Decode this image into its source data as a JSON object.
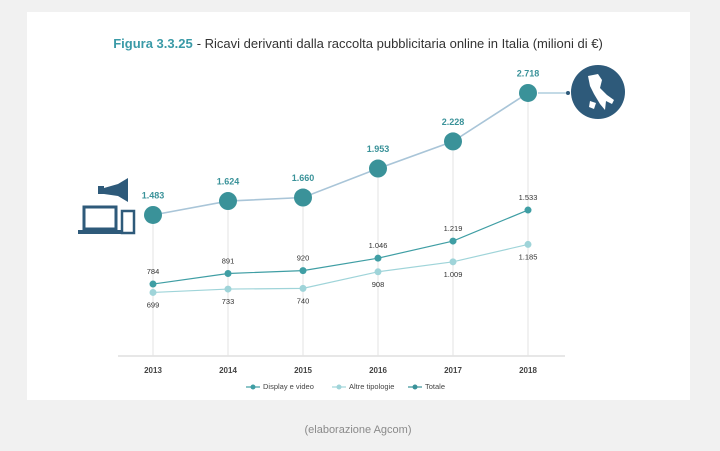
{
  "chart_data": {
    "type": "line",
    "figure_number": "Figura 3.3.25",
    "title": "- Ricavi derivanti dalla raccolta pubblicitaria online in Italia (milioni di €)",
    "caption": "(elaborazione Agcom)",
    "categories": [
      "2013",
      "2014",
      "2015",
      "2016",
      "2017",
      "2018"
    ],
    "ylim": [
      0,
      2900
    ],
    "series": [
      {
        "name": "Display e video",
        "color": "#3f9ea4",
        "values": [
          784,
          891,
          920,
          1046,
          1219,
          1533
        ],
        "value_labels": [
          "784",
          "891",
          "920",
          "1.046",
          "1.219",
          "1.533"
        ]
      },
      {
        "name": "Altre tipologie",
        "color": "#9fd4d9",
        "values": [
          699,
          733,
          740,
          908,
          1009,
          1185
        ],
        "value_labels": [
          "699",
          "733",
          "740",
          "908",
          "1.009",
          "1.185"
        ]
      },
      {
        "name": "Totale",
        "color": "#3a9299",
        "values": [
          1483,
          1624,
          1660,
          1953,
          2228,
          2718
        ],
        "value_labels": [
          "1.483",
          "1.624",
          "1.660",
          "1.953",
          "2.228",
          "2.718"
        ]
      }
    ]
  }
}
